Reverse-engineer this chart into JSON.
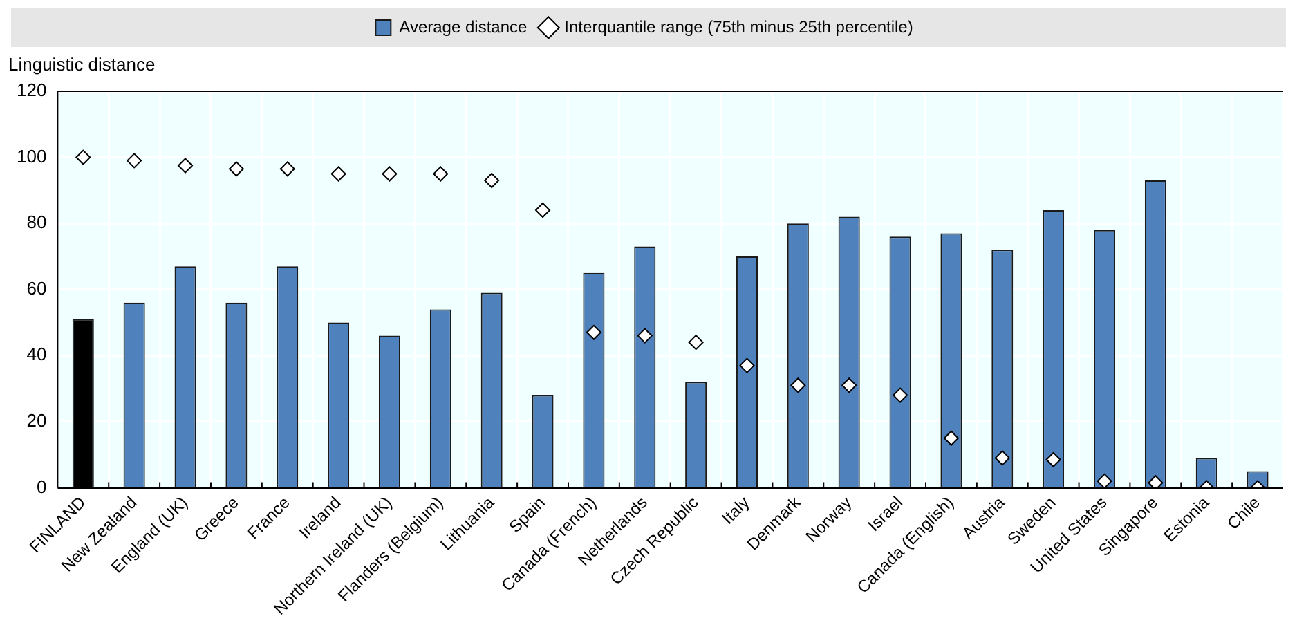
{
  "chart_data": {
    "type": "bar",
    "ylabel": "Linguistic distance",
    "categories": [
      "FINLAND",
      "New Zealand",
      "England (UK)",
      "Greece",
      "France",
      "Ireland",
      "Northern Ireland (UK)",
      "Flanders (Belgium)",
      "Lithuania",
      "Spain",
      "Canada (French)",
      "Netherlands",
      "Czech Republic",
      "Italy",
      "Denmark",
      "Norway",
      "Israel",
      "Canada (English)",
      "Austria",
      "Sweden",
      "United States",
      "Singapore",
      "Estonia",
      "Chile"
    ],
    "series": [
      {
        "name": "Average distance",
        "color": "#4f81bd",
        "colors": [
          "#000000",
          "#4f81bd",
          "#4f81bd",
          "#4f81bd",
          "#4f81bd",
          "#4f81bd",
          "#4f81bd",
          "#4f81bd",
          "#4f81bd",
          "#4f81bd",
          "#4f81bd",
          "#4f81bd",
          "#4f81bd",
          "#4f81bd",
          "#4f81bd",
          "#4f81bd",
          "#4f81bd",
          "#4f81bd",
          "#4f81bd",
          "#4f81bd",
          "#4f81bd",
          "#4f81bd",
          "#4f81bd",
          "#4f81bd"
        ],
        "values": [
          51,
          56,
          67,
          56,
          67,
          50,
          46,
          54,
          59,
          28,
          65,
          73,
          32,
          70,
          80,
          82,
          76,
          77,
          72,
          84,
          78,
          93,
          9,
          5
        ]
      },
      {
        "name": "Interquantile range (75th minus 25th percentile)",
        "type": "scatter",
        "color": "#ffffff",
        "marker": "diamond",
        "values": [
          100,
          99,
          97.5,
          96.5,
          96.5,
          95,
          95,
          95,
          93,
          84,
          47,
          46,
          44,
          37,
          31,
          31,
          28,
          15,
          9,
          8.5,
          2,
          1.5,
          0,
          0
        ]
      }
    ],
    "ylim": [
      0,
      120
    ],
    "yticks": [
      0,
      20,
      40,
      60,
      80,
      100,
      120
    ],
    "grid": true,
    "legend": "top"
  }
}
